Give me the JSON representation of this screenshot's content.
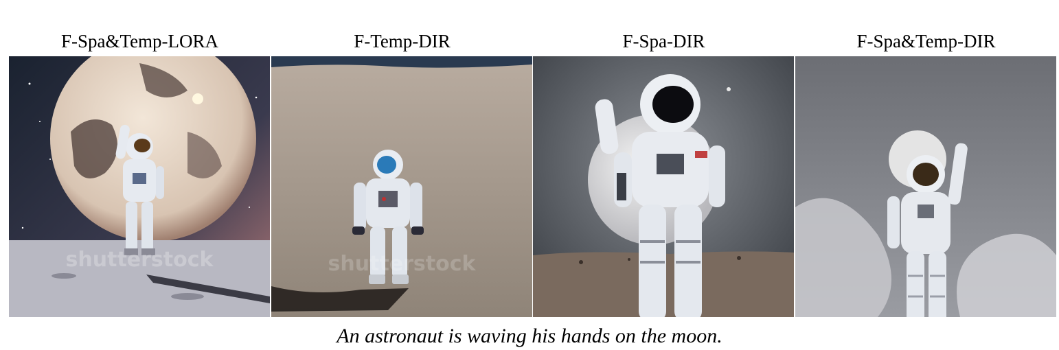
{
  "figure": {
    "panels": [
      {
        "title": "F-Spa&Temp-LORA"
      },
      {
        "title": "F-Temp-DIR"
      },
      {
        "title": "F-Spa-DIR"
      },
      {
        "title": "F-Spa&Temp-DIR"
      }
    ],
    "caption": "An astronaut is waving his hands on the moon."
  }
}
